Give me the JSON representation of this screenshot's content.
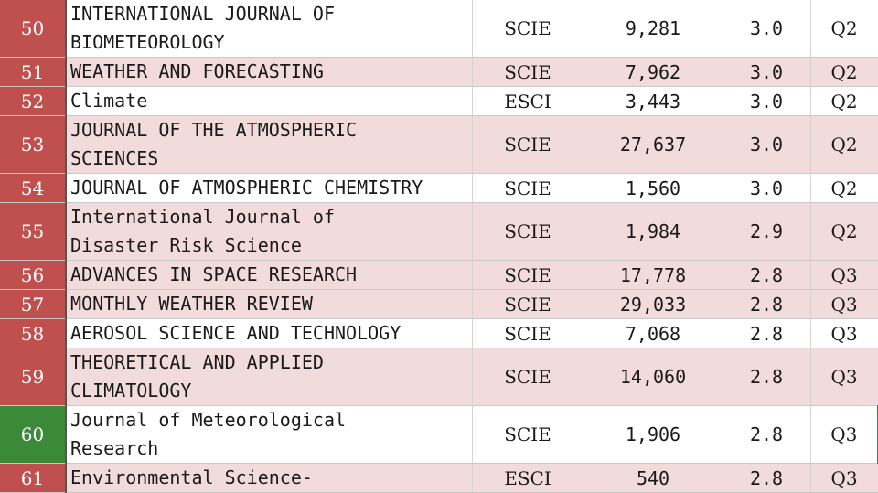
{
  "rows": [
    {
      "rank": "50",
      "name": "INTERNATIONAL JOURNAL OF\nBIOMETEOROLOGY",
      "index": "SCIE",
      "citations": "9,281",
      "impact": "3.0",
      "quartile": "Q2"
    },
    {
      "rank": "51",
      "name": "WEATHER AND FORECASTING",
      "index": "SCIE",
      "citations": "7,962",
      "impact": "3.0",
      "quartile": "Q2"
    },
    {
      "rank": "52",
      "name": "Climate",
      "index": "ESCI",
      "citations": "3,443",
      "impact": "3.0",
      "quartile": "Q2"
    },
    {
      "rank": "53",
      "name": "JOURNAL OF THE ATMOSPHERIC\nSCIENCES",
      "index": "SCIE",
      "citations": "27,637",
      "impact": "3.0",
      "quartile": "Q2"
    },
    {
      "rank": "54",
      "name": "JOURNAL OF ATMOSPHERIC CHEMISTRY",
      "index": "SCIE",
      "citations": "1,560",
      "impact": "3.0",
      "quartile": "Q2"
    },
    {
      "rank": "55",
      "name": "International Journal of\nDisaster Risk Science",
      "index": "SCIE",
      "citations": "1,984",
      "impact": "2.9",
      "quartile": "Q2"
    },
    {
      "rank": "56",
      "name": "ADVANCES IN SPACE RESEARCH",
      "index": "SCIE",
      "citations": "17,778",
      "impact": "2.8",
      "quartile": "Q3"
    },
    {
      "rank": "57",
      "name": "MONTHLY WEATHER REVIEW",
      "index": "SCIE",
      "citations": "29,033",
      "impact": "2.8",
      "quartile": "Q3"
    },
    {
      "rank": "58",
      "name": "AEROSOL SCIENCE AND TECHNOLOGY",
      "index": "SCIE",
      "citations": "7,068",
      "impact": "2.8",
      "quartile": "Q3"
    },
    {
      "rank": "59",
      "name": "THEORETICAL AND APPLIED\nCLIMATOLOGY",
      "index": "SCIE",
      "citations": "14,060",
      "impact": "2.8",
      "quartile": "Q3"
    },
    {
      "rank": "60",
      "name": "Journal of Meteorological\nResearch",
      "index": "SCIE",
      "citations": "1,906",
      "impact": "2.8",
      "quartile": "Q3"
    },
    {
      "rank": "61",
      "name": "Environmental Science-",
      "index": "ESCI",
      "citations": "540",
      "impact": "2.8",
      "quartile": "Q3"
    }
  ]
}
